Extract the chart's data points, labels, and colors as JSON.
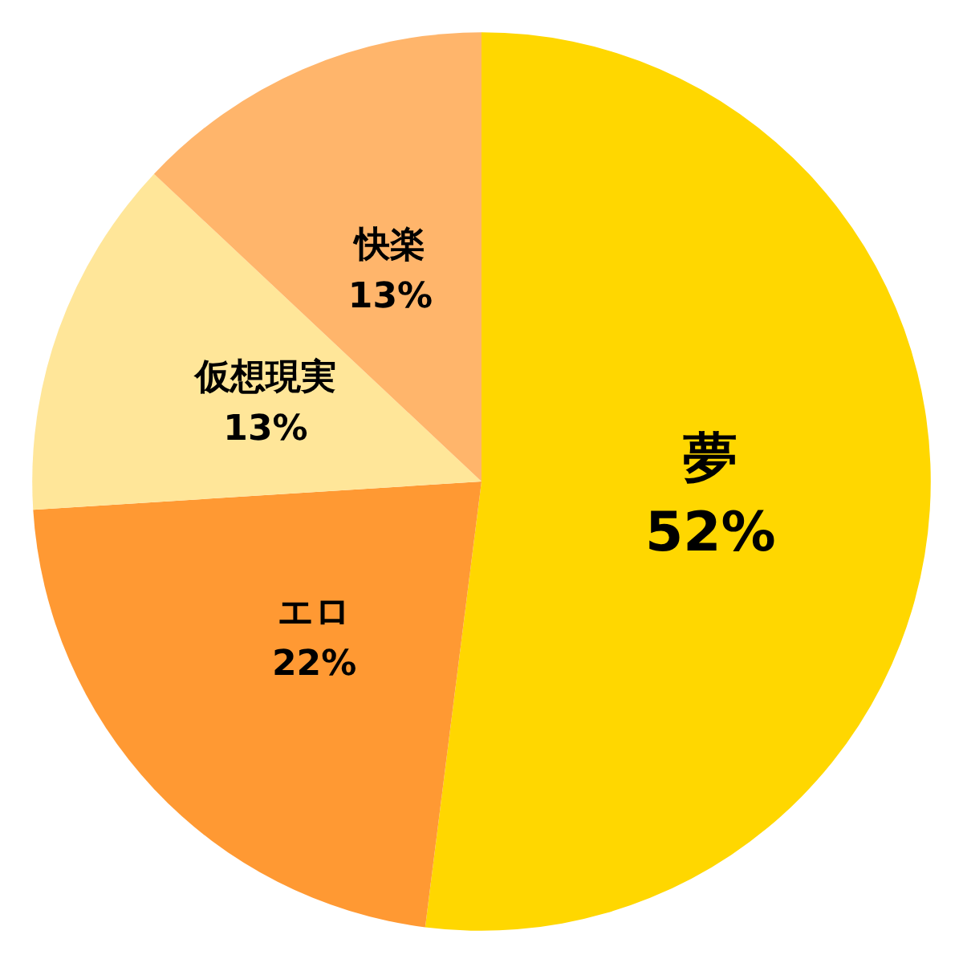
{
  "chart_data": {
    "type": "pie",
    "categories": [
      "夢",
      "エロ",
      "仮想現実",
      "快楽"
    ],
    "values": [
      52,
      22,
      13,
      13
    ],
    "colors": [
      "#ffd700",
      "#ff9933",
      "#ffe699",
      "#ffb56b"
    ],
    "value_labels": [
      "52%",
      "22%",
      "13%",
      "13%"
    ],
    "legend": false
  }
}
